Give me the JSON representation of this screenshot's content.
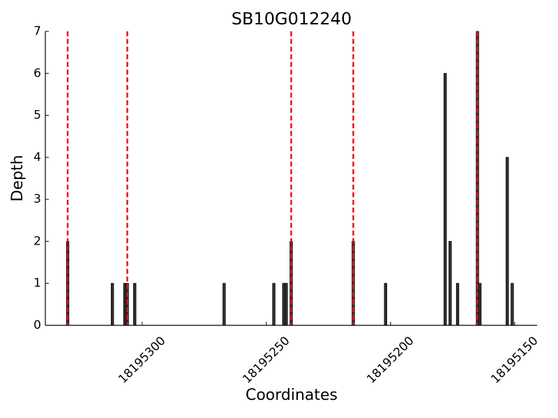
{
  "chart_data": {
    "type": "bar",
    "title": "SB10G012240",
    "xlabel": "Coordinates",
    "ylabel": "Depth",
    "x": [
      18195330,
      18195312,
      18195307,
      18195306,
      18195303,
      18195267,
      18195247,
      18195243,
      18195242,
      18195240,
      18195215,
      18195202,
      18195178,
      18195176,
      18195173,
      18195165,
      18195164,
      18195153,
      18195151
    ],
    "values": [
      2,
      1,
      1,
      1,
      1,
      1,
      1,
      1,
      1,
      2,
      2,
      1,
      6,
      2,
      1,
      7,
      1,
      4,
      1
    ],
    "color": "#333333",
    "vlines": [
      18195330,
      18195306,
      18195240,
      18195215,
      18195165
    ],
    "vline_color": "#ee1111",
    "xlim": [
      18195339,
      18195141
    ],
    "xticks": [
      18195300,
      18195250,
      18195200,
      18195150
    ],
    "ylim": [
      0,
      7
    ],
    "yticks": [
      0,
      1,
      2,
      3,
      4,
      5,
      6,
      7
    ]
  }
}
